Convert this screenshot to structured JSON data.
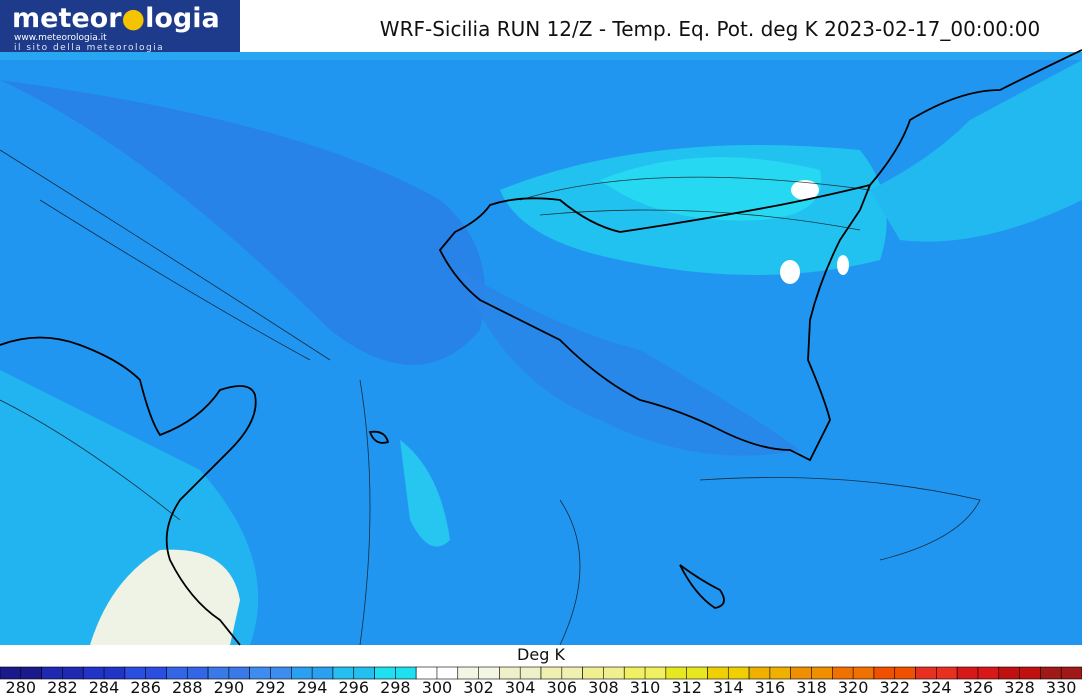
{
  "header": {
    "logo": "meteor",
    "logo_end": "logia",
    "logo_url": "www.meteorologia.it",
    "logo_tagline": "il sito della meteorologia",
    "title": "WRF-Sicilia RUN 12/Z - Temp. Eq. Pot. deg K 2023-02-17_00:00:00"
  },
  "colorbar": {
    "label": "Deg K",
    "levels": [
      280,
      282,
      284,
      286,
      288,
      290,
      292,
      294,
      296,
      298,
      300,
      302,
      304,
      306,
      308,
      310,
      312,
      314,
      316,
      318,
      320,
      322,
      324,
      326,
      328,
      330
    ],
    "colors": [
      "#1a1a8c",
      "#1f28b0",
      "#2233c8",
      "#2a4ee0",
      "#3366e6",
      "#3a7ae8",
      "#3f8cf0",
      "#2aa0f0",
      "#22bff0",
      "#1ee0f0",
      "#ffffff",
      "#f4f6e4",
      "#eef0c8",
      "#f0f0b0",
      "#f0f090",
      "#f0f060",
      "#e8e820",
      "#f0d000",
      "#f0b000",
      "#f09000",
      "#f07000",
      "#f05000",
      "#e83020",
      "#d81818",
      "#c01010",
      "#a01818"
    ]
  }
}
